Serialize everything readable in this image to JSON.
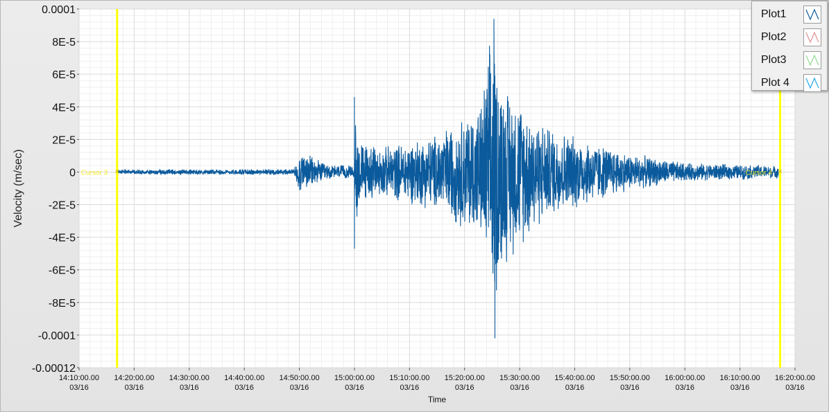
{
  "chart_data": {
    "type": "line",
    "title": "",
    "xlabel": "Time",
    "ylabel": "Velocity (m/sec)",
    "ylim": [
      -0.00012,
      0.0001
    ],
    "xlim_minutes": [
      0,
      130
    ],
    "y_ticks": [
      "0.0001",
      "8E-5",
      "6E-5",
      "4E-5",
      "2E-5",
      "0",
      "-2E-5",
      "-4E-5",
      "-6E-5",
      "-8E-5",
      "-0.0001",
      "-0.00012"
    ],
    "x_ticks": [
      {
        "time": "14:10:00.00",
        "date": "03/16"
      },
      {
        "time": "14:20:00.00",
        "date": "03/16"
      },
      {
        "time": "14:30:00.00",
        "date": "03/16"
      },
      {
        "time": "14:40:00.00",
        "date": "03/16"
      },
      {
        "time": "14:50:00.00",
        "date": "03/16"
      },
      {
        "time": "15:00:00.00",
        "date": "03/16"
      },
      {
        "time": "15:10:00.00",
        "date": "03/16"
      },
      {
        "time": "15:20:00.00",
        "date": "03/16"
      },
      {
        "time": "15:30:00.00",
        "date": "03/16"
      },
      {
        "time": "15:40:00.00",
        "date": "03/16"
      },
      {
        "time": "15:50:00.00",
        "date": "03/16"
      },
      {
        "time": "16:00:00.00",
        "date": "03/16"
      },
      {
        "time": "16:10:00.00",
        "date": "03/16"
      },
      {
        "time": "16:20:00.00",
        "date": "03/16"
      }
    ],
    "grid": true,
    "cursors": [
      {
        "label": "Cursor 3",
        "x_time": "14:16:54",
        "color": "#ffff00"
      },
      {
        "label": "Cursor 4",
        "x_time": "16:17:18",
        "color": "#ffff00"
      }
    ],
    "series": [
      {
        "name": "Plot1",
        "color": "#0b5a9c",
        "envelope": [
          {
            "t": "14:17:00",
            "amp": 1.5e-06
          },
          {
            "t": "14:49:00",
            "amp": 2e-06
          },
          {
            "t": "14:50:00",
            "amp": 1.4e-05
          },
          {
            "t": "14:55:00",
            "amp": 5e-06
          },
          {
            "t": "15:00:00",
            "amp": 4e-06
          },
          {
            "t": "15:00:10",
            "amp": 4.6e-05
          },
          {
            "t": "15:01:00",
            "amp": 2e-05
          },
          {
            "t": "15:05:00",
            "amp": 1.6e-05
          },
          {
            "t": "15:15:00",
            "amp": 2.5e-05
          },
          {
            "t": "15:23:00",
            "amp": 4.5e-05
          },
          {
            "t": "15:25:00",
            "amp": 9.4e-05
          },
          {
            "t": "15:27:00",
            "amp": 6e-05
          },
          {
            "t": "15:35:00",
            "amp": 3e-05
          },
          {
            "t": "15:50:00",
            "amp": 1.2e-05
          },
          {
            "t": "16:00:00",
            "amp": 6e-06
          },
          {
            "t": "16:17:00",
            "amp": 4e-06
          }
        ],
        "peaks": [
          {
            "t": "15:00:00",
            "value": 4.6e-05
          },
          {
            "t": "15:00:00",
            "value": -4.7e-05
          },
          {
            "t": "15:25:20",
            "value": 9.4e-05
          },
          {
            "t": "15:25:30",
            "value": -0.000102
          }
        ]
      },
      {
        "name": "Plot2",
        "color": "#e8a0a0"
      },
      {
        "name": "Plot3",
        "color": "#a0dfa0"
      },
      {
        "name": "Plot 4",
        "color": "#1ea8e8"
      }
    ]
  },
  "legend": {
    "items": [
      {
        "label": "Plot1",
        "color": "#0b5a9c"
      },
      {
        "label": "Plot2",
        "color": "#e09090"
      },
      {
        "label": "Plot3",
        "color": "#90d890"
      },
      {
        "label": "Plot 4",
        "color": "#1ea8e8"
      }
    ]
  }
}
